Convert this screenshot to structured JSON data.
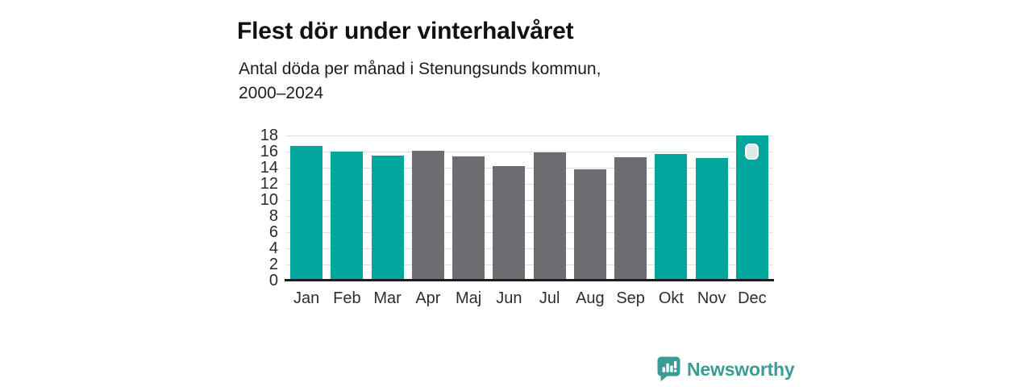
{
  "page": {
    "background": "#ffffff"
  },
  "header": {
    "title": "Flest dör under vinterhalvåret",
    "subtitle_line1": "Antal döda per månad i Stenungsunds kommun,",
    "subtitle_line2": "2000–2024"
  },
  "chart_data": {
    "type": "bar",
    "title": "Flest dör under vinterhalvåret",
    "subtitle": "Antal döda per månad i Stenungsunds kommun, 2000–2024",
    "categories": [
      "Jan",
      "Feb",
      "Mar",
      "Apr",
      "Maj",
      "Jun",
      "Jul",
      "Aug",
      "Sep",
      "Okt",
      "Nov",
      "Dec"
    ],
    "values": [
      16.7,
      16.0,
      15.5,
      16.1,
      15.4,
      14.2,
      15.9,
      13.8,
      15.3,
      15.7,
      15.2,
      18.0
    ],
    "bar_color_keys": [
      "winter",
      "winter",
      "winter",
      "summer",
      "summer",
      "summer",
      "summer",
      "summer",
      "summer",
      "winter",
      "winter",
      "winter"
    ],
    "palette": {
      "winter": "#00a69c",
      "summer": "#6d6d71"
    },
    "xlabel": "",
    "ylabel": "",
    "ylim": [
      0,
      18
    ],
    "yticks": [
      0,
      2,
      4,
      6,
      8,
      10,
      12,
      14,
      16,
      18
    ],
    "grid": "horizontal",
    "legend": "none",
    "gridline_color": "#dedede",
    "axis_color": "#1c1c1c"
  },
  "marker": {
    "month": "Dec",
    "fill": "#dcebe9",
    "border": "#ffffff"
  },
  "footer": {
    "brand": "Newsworthy",
    "brand_color": "#3b9c95",
    "logo_icon": "bar-chart-speech-bubble-icon"
  }
}
